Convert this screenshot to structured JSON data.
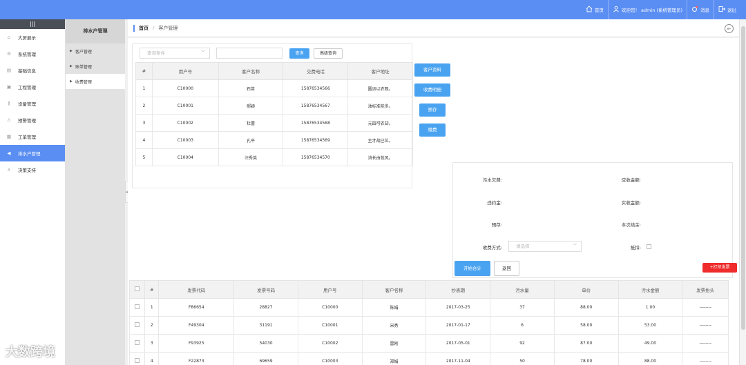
{
  "topbar": {
    "home_label": "首页",
    "welcome_label": "欢迎您！ admin (系统管理员)",
    "messages_label": "消息",
    "logout_label": "退出"
  },
  "sidebar": {
    "menu_glyph": "|||",
    "items": [
      {
        "label": "大屏展示",
        "icon": "home-icon"
      },
      {
        "label": "系统管理",
        "icon": "gear-icon"
      },
      {
        "label": "基础信息",
        "icon": "document-icon"
      },
      {
        "label": "工程管理",
        "icon": "briefcase-icon"
      },
      {
        "label": "设备管理",
        "icon": "bars-icon"
      },
      {
        "label": "预警管理",
        "icon": "alert-icon"
      },
      {
        "label": "工单管理",
        "icon": "clipboard-icon"
      },
      {
        "label": "排水户管理",
        "icon": "volume-icon"
      },
      {
        "label": "决策支持",
        "icon": "user-icon"
      }
    ],
    "active_index": 7
  },
  "subnav": {
    "title": "排水户管理",
    "items": [
      "客户管理",
      "账单管理",
      "收费管理"
    ],
    "active_index": 2
  },
  "breadcrumb": {
    "home": "首页",
    "separator": "/",
    "current": "客户管理"
  },
  "search": {
    "condition_placeholder": "查询条件",
    "query_button": "查询",
    "advanced_button": "高级查询"
  },
  "customer_table": {
    "headers": [
      "#",
      "用户号",
      "客户名称",
      "交费电话",
      "客户地址"
    ],
    "rows": [
      [
        "1",
        "C10000",
        "石苗",
        "15876534566",
        "圆派以农观。"
      ],
      [
        "2",
        "C10001",
        "郝颖",
        "15876534567",
        "油标准能多。"
      ],
      [
        "3",
        "C10002",
        "杜蕾",
        "15876534568",
        "元四可农却。"
      ],
      [
        "4",
        "C10003",
        "孔平",
        "15876534569",
        "主才战已位。"
      ],
      [
        "5",
        "C10004",
        "汪秀英",
        "15876534570",
        "消长由就风。"
      ]
    ]
  },
  "action_buttons": {
    "customer_info": "客户资料",
    "fee_detail": "收费明细",
    "prestore": "预存",
    "charge": "缴费"
  },
  "calc": {
    "sewage_arrears": "污水欠费:",
    "receivable": "应收金额:",
    "penalty": "违约金:",
    "received": "实收金额:",
    "prestore": "预存:",
    "balance": "本次结余:",
    "pay_method": "收费方式:",
    "pay_method_placeholder": "请选择",
    "deduct": "抵扣:",
    "start_calc_button": "开始合计",
    "return_button": "返回"
  },
  "print_button": "+打印发票",
  "invoice_table": {
    "headers": [
      "#",
      "发票代码",
      "发票号码",
      "用户号",
      "客户名称",
      "抄表期",
      "污水量",
      "单价",
      "污水金额",
      "发票抬头"
    ],
    "rows": [
      [
        "1",
        "F86654",
        "28827",
        "C10000",
        "陈娟",
        "2017-03-25",
        "37",
        "88.00",
        "1.00",
        "--------"
      ],
      [
        "2",
        "F49304",
        "31191",
        "C10001",
        "宋秀",
        "2017-01-17",
        "6",
        "58.00",
        "53.00",
        "--------"
      ],
      [
        "3",
        "F93925",
        "54030",
        "C10002",
        "雷刚",
        "2017-05-01",
        "92",
        "87.00",
        "49.00",
        "--------"
      ],
      [
        "4",
        "F22873",
        "69659",
        "C10003",
        "郑娟",
        "2017-11-04",
        "50",
        "78.00",
        "88.00",
        "--------"
      ]
    ]
  },
  "watermark": "大数跨境",
  "colors": {
    "topbar": "#5b8ef2",
    "active_side": "#5b8ef2",
    "button_blue": "#4aa3f0",
    "print_red": "#ef2b2b"
  }
}
